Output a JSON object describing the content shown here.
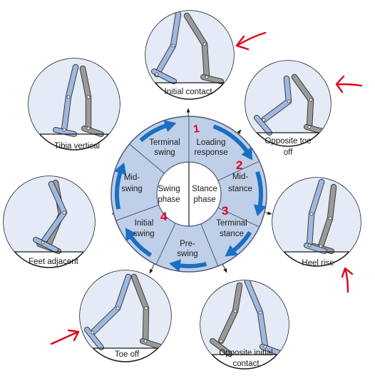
{
  "colors": {
    "ring_fill": "#bfcfe8",
    "hub_fill": "#ffffff",
    "arrow_blue": "#1a6fc0",
    "leg_near": "#9fb8e2",
    "leg_far": "#9a9a9a",
    "annotation_red": "#e0001b"
  },
  "hub": {
    "left": [
      "Swing",
      "phase"
    ],
    "right": [
      "Stance",
      "phase"
    ]
  },
  "segments": [
    [
      "Loading",
      "response"
    ],
    [
      "Mid-",
      "stance"
    ],
    [
      "Terminal",
      "stance"
    ],
    [
      "Pre-",
      "swing"
    ],
    [
      "Initial",
      "swing"
    ],
    [
      "Mid-",
      "swing"
    ],
    [
      "Terminal",
      "swing"
    ]
  ],
  "events": [
    [
      "Initial contact"
    ],
    [
      "Opposite toe",
      "off"
    ],
    [
      "Heel rise"
    ],
    [
      "Opposite initial",
      "contact"
    ],
    [
      "Toe off"
    ],
    [
      "Feet adjacent"
    ],
    [
      "Tibia vertical"
    ]
  ],
  "annotations": [
    "1",
    "2",
    "3",
    "4"
  ]
}
